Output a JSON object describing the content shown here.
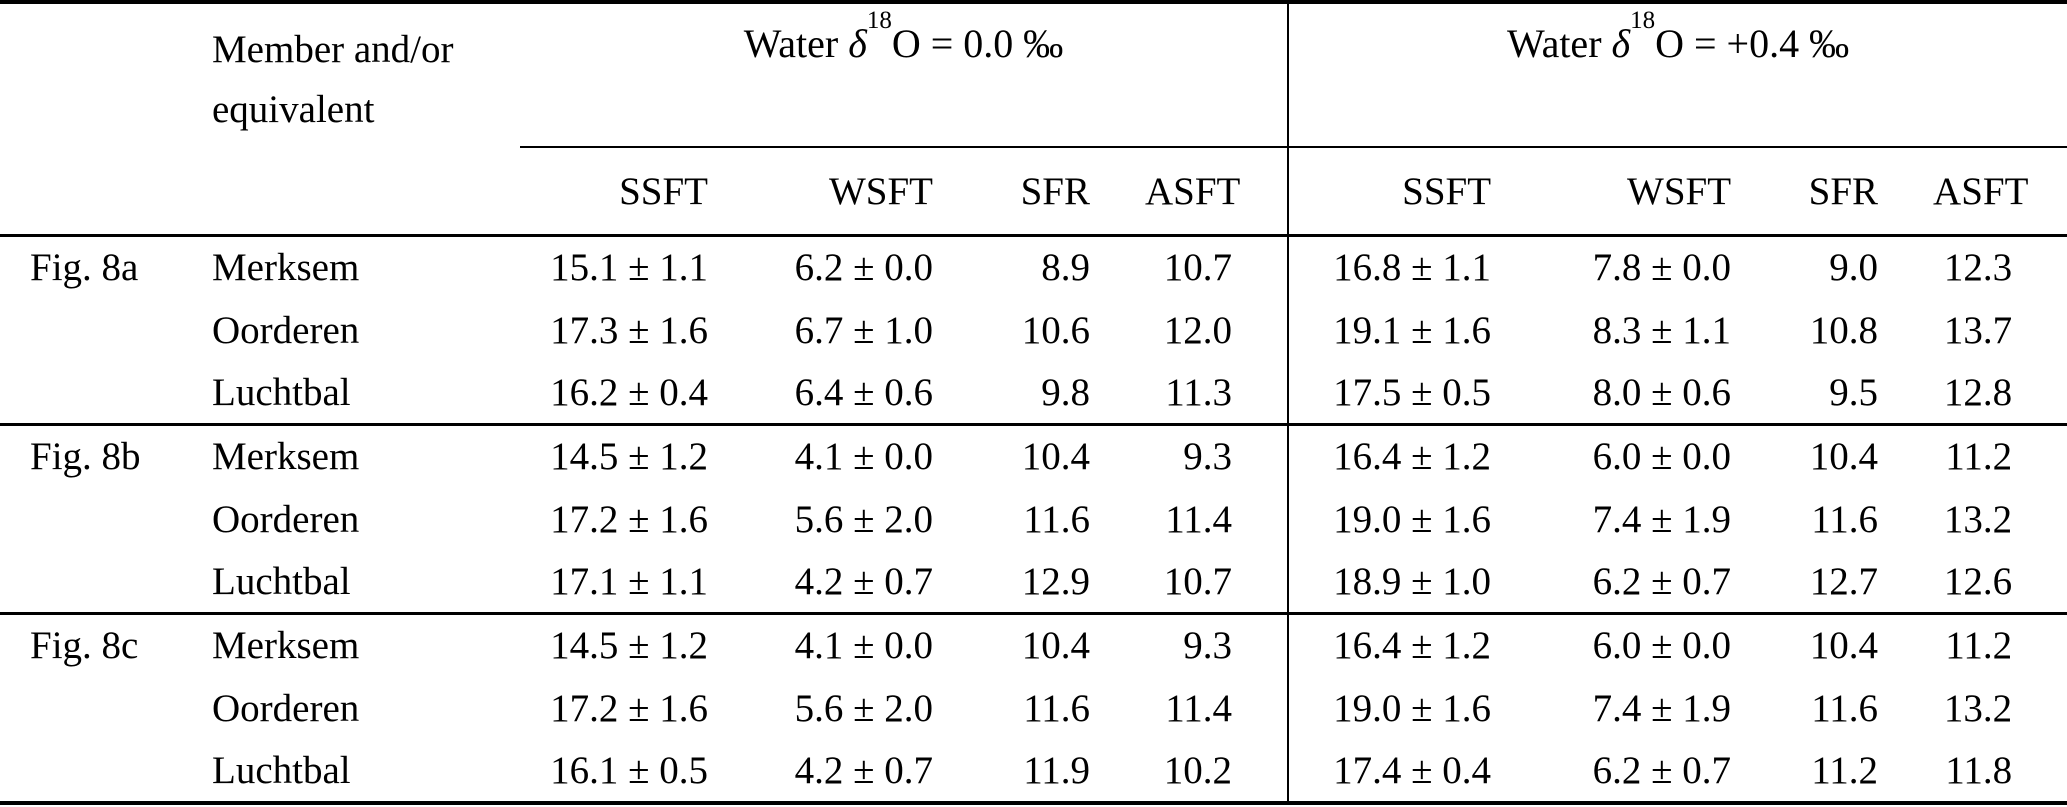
{
  "table": {
    "header": {
      "member_label_line1": "Member and/or",
      "member_label_line2": "equivalent",
      "water_left": {
        "word": "Water ",
        "delta": "δ",
        "sup": "18",
        "post": "O = 0.0 ‰"
      },
      "water_right": {
        "word": "Water ",
        "delta": "δ",
        "sup": "18",
        "post": "O = +0.4 ‰"
      },
      "subcolumns": [
        "SSFT",
        "WSFT",
        "SFR",
        "ASFT"
      ]
    },
    "groups": [
      {
        "fig": "Fig. 8a",
        "rows": [
          {
            "member": "Merksem",
            "left": [
              "15.1 ± 1.1",
              "6.2 ± 0.0",
              "8.9",
              "10.7"
            ],
            "right": [
              "16.8 ± 1.1",
              "7.8 ± 0.0",
              "9.0",
              "12.3"
            ]
          },
          {
            "member": "Oorderen",
            "left": [
              "17.3 ± 1.6",
              "6.7 ± 1.0",
              "10.6",
              "12.0"
            ],
            "right": [
              "19.1 ± 1.6",
              "8.3 ± 1.1",
              "10.8",
              "13.7"
            ]
          },
          {
            "member": "Luchtbal",
            "left": [
              "16.2 ± 0.4",
              "6.4 ± 0.6",
              "9.8",
              "11.3"
            ],
            "right": [
              "17.5 ± 0.5",
              "8.0 ± 0.6",
              "9.5",
              "12.8"
            ]
          }
        ]
      },
      {
        "fig": "Fig. 8b",
        "rows": [
          {
            "member": "Merksem",
            "left": [
              "14.5 ± 1.2",
              "4.1 ± 0.0",
              "10.4",
              "9.3"
            ],
            "right": [
              "16.4 ± 1.2",
              "6.0 ± 0.0",
              "10.4",
              "11.2"
            ]
          },
          {
            "member": "Oorderen",
            "left": [
              "17.2 ± 1.6",
              "5.6 ± 2.0",
              "11.6",
              "11.4"
            ],
            "right": [
              "19.0 ± 1.6",
              "7.4 ± 1.9",
              "11.6",
              "13.2"
            ]
          },
          {
            "member": "Luchtbal",
            "left": [
              "17.1 ± 1.1",
              "4.2 ± 0.7",
              "12.9",
              "10.7"
            ],
            "right": [
              "18.9 ± 1.0",
              "6.2 ± 0.7",
              "12.7",
              "12.6"
            ]
          }
        ]
      },
      {
        "fig": "Fig. 8c",
        "rows": [
          {
            "member": "Merksem",
            "left": [
              "14.5 ± 1.2",
              "4.1 ± 0.0",
              "10.4",
              "9.3"
            ],
            "right": [
              "16.4 ± 1.2",
              "6.0 ± 0.0",
              "10.4",
              "11.2"
            ]
          },
          {
            "member": "Oorderen",
            "left": [
              "17.2 ± 1.6",
              "5.6 ± 2.0",
              "11.6",
              "11.4"
            ],
            "right": [
              "19.0 ± 1.6",
              "7.4 ± 1.9",
              "11.6",
              "13.2"
            ]
          },
          {
            "member": "Luchtbal",
            "left": [
              "16.1 ± 0.5",
              "4.2 ± 0.7",
              "11.9",
              "10.2"
            ],
            "right": [
              "17.4 ± 0.4",
              "6.2 ± 0.7",
              "11.2",
              "11.8"
            ]
          }
        ]
      }
    ]
  }
}
